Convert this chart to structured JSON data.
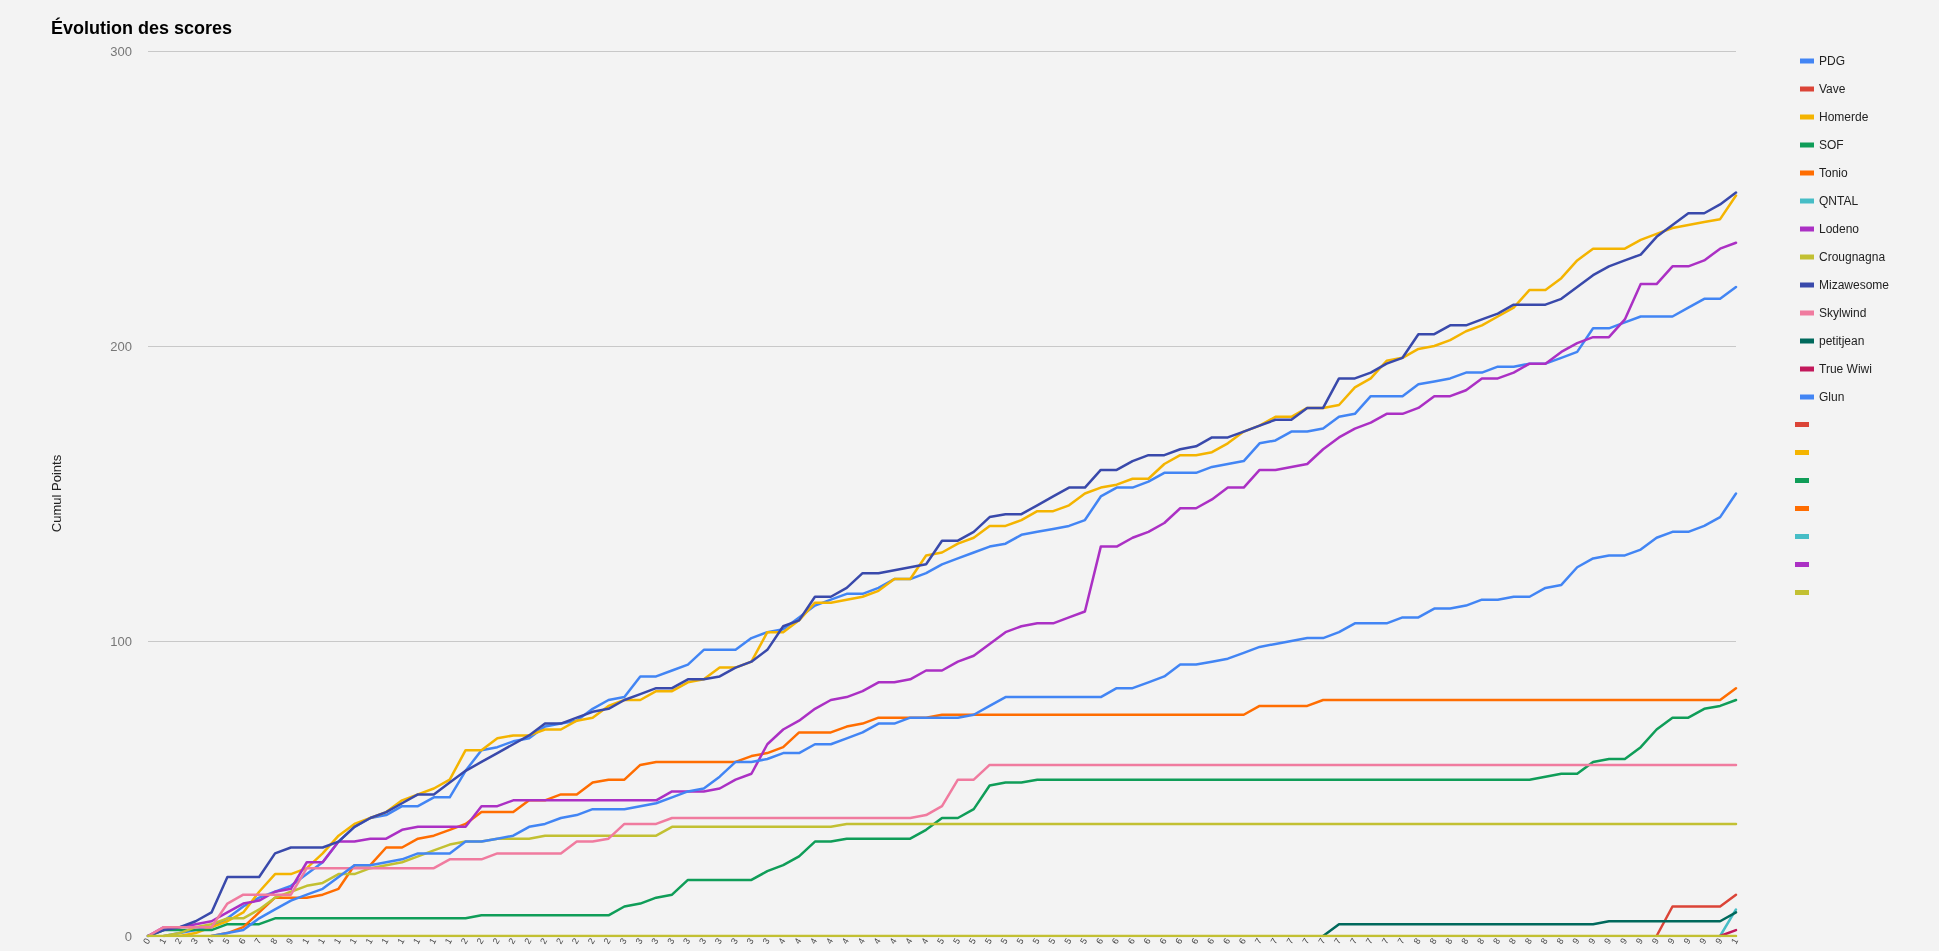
{
  "chart_data": {
    "type": "line",
    "title": "Évolution des scores",
    "ylabel": "Cumul Points",
    "categories": [
      "0",
      "1",
      "2",
      "3",
      "4",
      "5",
      "6",
      "7",
      "8",
      "9",
      "1",
      "1",
      "1",
      "1",
      "1",
      "1",
      "1",
      "1",
      "1",
      "1",
      "2",
      "2",
      "2",
      "2",
      "2",
      "2",
      "2",
      "2",
      "2",
      "2",
      "3",
      "3",
      "3",
      "3",
      "3",
      "3",
      "3",
      "3",
      "3",
      "3",
      "4",
      "4",
      "4",
      "4",
      "4",
      "4",
      "4",
      "4",
      "4",
      "4",
      "5",
      "5",
      "5",
      "5",
      "5",
      "5",
      "5",
      "5",
      "5",
      "5",
      "6",
      "6",
      "6",
      "6",
      "6",
      "6",
      "6",
      "6",
      "6",
      "6",
      "7",
      "7",
      "7",
      "7",
      "7",
      "7",
      "7",
      "7",
      "7",
      "7",
      "8",
      "8",
      "8",
      "8",
      "8",
      "8",
      "8",
      "8",
      "8",
      "8",
      "9",
      "9",
      "9",
      "9",
      "9",
      "9",
      "9",
      "9",
      "9",
      "9",
      "1"
    ],
    "ylim": [
      0,
      300
    ],
    "yticks": [
      0,
      100,
      200,
      300
    ],
    "grid": "y",
    "legend": "top right",
    "marker": "none",
    "series": [
      {
        "name": "PDG",
        "color": "#4285f4",
        "values": [
          null,
          0,
          1,
          2,
          3,
          6,
          10,
          13,
          15,
          17,
          21,
          25,
          32,
          37,
          40,
          41,
          44,
          44,
          47,
          47,
          56,
          63,
          64,
          66,
          67,
          71,
          72,
          73,
          77,
          80,
          81,
          88,
          88,
          90,
          92,
          97,
          97,
          97,
          101,
          103,
          104,
          108,
          112,
          114,
          116,
          116,
          118,
          121,
          121,
          123,
          126,
          128,
          130,
          132,
          133,
          136,
          137,
          138,
          139,
          141,
          149,
          152,
          152,
          154,
          157,
          157,
          157,
          159,
          160,
          161,
          167,
          168,
          171,
          171,
          172,
          176,
          177,
          183,
          183,
          183,
          187,
          188,
          189,
          191,
          191,
          193,
          193,
          194,
          194,
          196,
          198,
          206,
          206,
          208,
          210,
          210,
          210,
          213,
          216,
          216,
          220
        ]
      },
      {
        "name": "Vave",
        "color": "#db4437",
        "values": [
          null,
          null,
          null,
          null,
          null,
          null,
          null,
          null,
          null,
          null,
          null,
          null,
          null,
          null,
          null,
          null,
          null,
          null,
          null,
          null,
          null,
          null,
          null,
          null,
          null,
          null,
          null,
          null,
          null,
          null,
          null,
          null,
          null,
          null,
          null,
          null,
          null,
          null,
          null,
          null,
          null,
          null,
          null,
          null,
          null,
          null,
          null,
          null,
          null,
          null,
          null,
          null,
          null,
          null,
          null,
          null,
          null,
          null,
          null,
          null,
          null,
          null,
          null,
          null,
          null,
          null,
          null,
          null,
          null,
          null,
          null,
          null,
          null,
          null,
          null,
          null,
          null,
          null,
          null,
          null,
          null,
          null,
          null,
          null,
          null,
          null,
          null,
          null,
          null,
          null,
          null,
          null,
          null,
          null,
          null,
          0,
          10,
          10,
          10,
          10,
          14
        ]
      },
      {
        "name": "Homerde",
        "color": "#f4b400",
        "values": [
          null,
          null,
          0,
          1,
          3,
          5,
          8,
          15,
          21,
          21,
          23,
          28,
          34,
          38,
          40,
          42,
          46,
          48,
          50,
          53,
          63,
          63,
          67,
          68,
          68,
          70,
          70,
          73,
          74,
          78,
          80,
          80,
          83,
          83,
          86,
          87,
          91,
          91,
          93,
          103,
          103,
          107,
          113,
          113,
          114,
          115,
          117,
          121,
          121,
          129,
          130,
          133,
          135,
          139,
          139,
          141,
          144,
          144,
          146,
          150,
          152,
          153,
          155,
          155,
          160,
          163,
          163,
          164,
          167,
          171,
          173,
          176,
          176,
          179,
          179,
          180,
          186,
          189,
          195,
          196,
          199,
          200,
          202,
          205,
          207,
          210,
          213,
          219,
          219,
          223,
          229,
          233,
          233,
          233,
          236,
          238,
          240,
          241,
          242,
          243,
          251
        ]
      },
      {
        "name": "SOF",
        "color": "#0f9d58",
        "values": [
          0,
          2,
          2,
          2,
          2,
          4,
          4,
          4,
          6,
          6,
          6,
          6,
          6,
          6,
          6,
          6,
          6,
          6,
          6,
          6,
          6,
          7,
          7,
          7,
          7,
          7,
          7,
          7,
          7,
          7,
          10,
          11,
          13,
          14,
          19,
          19,
          19,
          19,
          19,
          22,
          24,
          27,
          32,
          32,
          33,
          33,
          33,
          33,
          33,
          36,
          40,
          40,
          43,
          51,
          52,
          52,
          53,
          53,
          53,
          53,
          53,
          53,
          53,
          53,
          53,
          53,
          53,
          53,
          53,
          53,
          53,
          53,
          53,
          53,
          53,
          53,
          53,
          53,
          53,
          53,
          53,
          53,
          53,
          53,
          53,
          53,
          53,
          53,
          54,
          55,
          55,
          59,
          60,
          60,
          64,
          70,
          74,
          74,
          77,
          78,
          80
        ]
      },
      {
        "name": "Tonio",
        "color": "#ff6d01",
        "values": [
          null,
          null,
          null,
          null,
          0,
          1,
          3,
          8,
          13,
          13,
          13,
          14,
          16,
          24,
          24,
          30,
          30,
          33,
          34,
          36,
          38,
          42,
          42,
          42,
          46,
          46,
          48,
          48,
          52,
          53,
          53,
          58,
          59,
          59,
          59,
          59,
          59,
          59,
          61,
          62,
          64,
          69,
          69,
          69,
          71,
          72,
          74,
          74,
          74,
          74,
          75,
          75,
          75,
          75,
          75,
          75,
          75,
          75,
          75,
          75,
          75,
          75,
          75,
          75,
          75,
          75,
          75,
          75,
          75,
          75,
          78,
          78,
          78,
          78,
          80,
          80,
          80,
          80,
          80,
          80,
          80,
          80,
          80,
          80,
          80,
          80,
          80,
          80,
          80,
          80,
          80,
          80,
          80,
          80,
          80,
          80,
          80,
          80,
          80,
          80,
          84
        ]
      },
      {
        "name": "QNTAL",
        "color": "#46bdc6",
        "values": [
          null,
          null,
          null,
          null,
          null,
          null,
          null,
          null,
          null,
          null,
          null,
          null,
          null,
          null,
          null,
          null,
          null,
          null,
          null,
          null,
          null,
          null,
          null,
          null,
          null,
          null,
          null,
          null,
          null,
          null,
          null,
          null,
          null,
          null,
          null,
          null,
          null,
          null,
          null,
          null,
          null,
          null,
          null,
          null,
          null,
          null,
          null,
          null,
          null,
          null,
          null,
          null,
          null,
          null,
          null,
          null,
          null,
          null,
          null,
          null,
          null,
          null,
          null,
          null,
          null,
          null,
          null,
          null,
          null,
          null,
          null,
          null,
          null,
          null,
          null,
          null,
          null,
          null,
          null,
          null,
          null,
          null,
          null,
          null,
          null,
          null,
          null,
          null,
          null,
          null,
          null,
          null,
          null,
          null,
          null,
          null,
          null,
          null,
          null,
          0,
          9
        ]
      },
      {
        "name": "Lodeno",
        "color": "#ab30c4",
        "values": [
          0,
          3,
          3,
          4,
          5,
          8,
          11,
          12,
          15,
          16,
          25,
          25,
          32,
          32,
          33,
          33,
          36,
          37,
          37,
          37,
          37,
          44,
          44,
          46,
          46,
          46,
          46,
          46,
          46,
          46,
          46,
          46,
          46,
          49,
          49,
          49,
          50,
          53,
          55,
          65,
          70,
          73,
          77,
          80,
          81,
          83,
          86,
          86,
          87,
          90,
          90,
          93,
          95,
          99,
          103,
          105,
          106,
          106,
          108,
          110,
          132,
          132,
          135,
          137,
          140,
          145,
          145,
          148,
          152,
          152,
          158,
          158,
          159,
          160,
          165,
          169,
          172,
          174,
          177,
          177,
          179,
          183,
          183,
          185,
          189,
          189,
          191,
          194,
          194,
          198,
          201,
          203,
          203,
          209,
          221,
          221,
          227,
          227,
          229,
          233,
          235
        ]
      },
      {
        "name": "Crougnagna",
        "color": "#c2c032",
        "values": [
          null,
          0,
          1,
          3,
          4,
          6,
          6,
          9,
          13,
          15,
          17,
          18,
          21,
          21,
          23,
          24,
          25,
          27,
          29,
          31,
          32,
          32,
          33,
          33,
          33,
          34,
          34,
          34,
          34,
          34,
          34,
          34,
          34,
          37,
          37,
          37,
          37,
          37,
          37,
          37,
          37,
          37,
          37,
          37,
          38,
          38,
          38,
          38,
          38,
          38,
          38,
          38,
          38,
          38,
          38,
          38,
          38,
          38,
          38,
          38,
          38,
          38,
          38,
          38,
          38,
          38,
          38,
          38,
          38,
          38,
          38,
          38,
          38,
          38,
          38,
          38,
          38,
          38,
          38,
          38,
          38,
          38,
          38,
          38,
          38,
          38,
          38,
          38,
          38,
          38,
          38,
          38,
          38,
          38,
          38,
          38,
          38,
          38,
          38,
          38,
          38
        ]
      },
      {
        "name": "Mizawesome",
        "color": "#3949ab",
        "values": [
          0,
          2,
          3,
          5,
          8,
          20,
          20,
          20,
          28,
          30,
          30,
          30,
          32,
          37,
          40,
          42,
          45,
          48,
          48,
          52,
          56,
          59,
          62,
          65,
          68,
          72,
          72,
          74,
          76,
          77,
          80,
          82,
          84,
          84,
          87,
          87,
          88,
          91,
          93,
          97,
          105,
          107,
          115,
          115,
          118,
          123,
          123,
          124,
          125,
          126,
          134,
          134,
          137,
          142,
          143,
          143,
          146,
          149,
          152,
          152,
          158,
          158,
          161,
          163,
          163,
          165,
          166,
          169,
          169,
          171,
          173,
          175,
          175,
          179,
          179,
          189,
          189,
          191,
          194,
          196,
          204,
          204,
          207,
          207,
          209,
          211,
          214,
          214,
          214,
          216,
          220,
          224,
          227,
          229,
          231,
          237,
          241,
          245,
          245,
          248,
          252
        ]
      },
      {
        "name": "Skylwind",
        "color": "#f07b9f",
        "values": [
          0,
          3,
          3,
          3,
          3,
          11,
          14,
          14,
          14,
          14,
          23,
          23,
          23,
          23,
          23,
          23,
          23,
          23,
          23,
          26,
          26,
          26,
          28,
          28,
          28,
          28,
          28,
          32,
          32,
          33,
          38,
          38,
          38,
          40,
          40,
          40,
          40,
          40,
          40,
          40,
          40,
          40,
          40,
          40,
          40,
          40,
          40,
          40,
          40,
          41,
          44,
          53,
          53,
          58,
          58,
          58,
          58,
          58,
          58,
          58,
          58,
          58,
          58,
          58,
          58,
          58,
          58,
          58,
          58,
          58,
          58,
          58,
          58,
          58,
          58,
          58,
          58,
          58,
          58,
          58,
          58,
          58,
          58,
          58,
          58,
          58,
          58,
          58,
          58,
          58,
          58,
          58,
          58,
          58,
          58,
          58,
          58,
          58,
          58,
          58,
          58
        ]
      },
      {
        "name": "petitjean",
        "color": "#00695c",
        "values": [
          null,
          null,
          null,
          null,
          null,
          null,
          null,
          null,
          null,
          null,
          null,
          null,
          null,
          null,
          null,
          null,
          null,
          null,
          null,
          null,
          null,
          null,
          null,
          null,
          null,
          null,
          null,
          null,
          null,
          null,
          null,
          null,
          null,
          null,
          null,
          null,
          null,
          null,
          null,
          null,
          null,
          null,
          null,
          null,
          null,
          null,
          null,
          null,
          null,
          null,
          null,
          null,
          null,
          null,
          null,
          null,
          null,
          null,
          null,
          null,
          null,
          null,
          null,
          null,
          null,
          null,
          null,
          null,
          null,
          null,
          null,
          null,
          null,
          null,
          0,
          4,
          4,
          4,
          4,
          4,
          4,
          4,
          4,
          4,
          4,
          4,
          4,
          4,
          4,
          4,
          4,
          4,
          5,
          5,
          5,
          5,
          5,
          5,
          5,
          5,
          8
        ]
      },
      {
        "name": "True Wiwi",
        "color": "#c2185b",
        "values": [
          null,
          null,
          null,
          null,
          null,
          null,
          null,
          null,
          null,
          null,
          null,
          null,
          null,
          null,
          null,
          null,
          null,
          null,
          null,
          null,
          null,
          null,
          null,
          null,
          null,
          null,
          null,
          null,
          null,
          null,
          null,
          null,
          null,
          null,
          null,
          null,
          null,
          null,
          null,
          null,
          null,
          null,
          null,
          null,
          null,
          null,
          null,
          null,
          null,
          null,
          null,
          null,
          null,
          null,
          null,
          null,
          null,
          null,
          null,
          null,
          null,
          null,
          null,
          null,
          null,
          null,
          null,
          null,
          null,
          null,
          null,
          null,
          null,
          null,
          null,
          null,
          null,
          null,
          null,
          null,
          null,
          null,
          null,
          null,
          null,
          null,
          null,
          null,
          null,
          null,
          null,
          null,
          null,
          null,
          null,
          null,
          null,
          null,
          null,
          0,
          2
        ]
      },
      {
        "name": "Glun",
        "color": "#4285f4",
        "values": [
          null,
          null,
          null,
          null,
          0,
          1,
          2,
          6,
          9,
          12,
          14,
          16,
          20,
          24,
          24,
          25,
          26,
          28,
          28,
          28,
          32,
          32,
          33,
          34,
          37,
          38,
          40,
          41,
          43,
          43,
          43,
          44,
          45,
          47,
          49,
          50,
          54,
          59,
          59,
          60,
          62,
          62,
          65,
          65,
          67,
          69,
          72,
          72,
          74,
          74,
          74,
          74,
          75,
          78,
          81,
          81,
          81,
          81,
          81,
          81,
          81,
          84,
          84,
          86,
          88,
          92,
          92,
          93,
          94,
          96,
          98,
          99,
          100,
          101,
          101,
          103,
          106,
          106,
          106,
          108,
          108,
          111,
          111,
          112,
          114,
          114,
          115,
          115,
          118,
          119,
          125,
          128,
          129,
          129,
          131,
          135,
          137,
          137,
          139,
          142,
          150
        ]
      },
      {
        "color": "#db4437",
        "values": [
          null,
          null,
          null,
          null,
          null,
          null,
          null,
          null,
          null,
          null,
          null,
          null,
          null,
          null,
          null,
          null,
          null,
          null,
          null,
          null,
          null,
          null,
          null,
          null,
          null,
          null,
          null,
          null,
          null,
          null,
          null,
          null,
          null,
          null,
          null,
          null,
          null,
          null,
          null,
          null,
          null,
          null,
          null,
          null,
          null,
          null,
          null,
          null,
          null,
          null,
          null,
          null,
          null,
          null,
          null,
          null,
          null,
          null,
          null,
          null,
          null,
          null,
          null,
          null,
          null,
          null,
          null,
          null,
          null,
          null,
          null,
          null,
          null,
          null,
          null,
          null,
          null,
          null,
          null,
          null,
          null,
          null,
          null,
          null,
          null,
          null,
          null,
          null,
          null,
          null,
          null,
          null,
          null,
          null,
          null,
          null,
          null,
          null,
          null,
          null,
          null
        ]
      },
      {
        "color": "#f4b400",
        "values": [
          null,
          null,
          null,
          null,
          null,
          null,
          null,
          null,
          null,
          null,
          null,
          null,
          null,
          null,
          null,
          null,
          null,
          null,
          null,
          null,
          null,
          null,
          null,
          null,
          null,
          null,
          null,
          null,
          null,
          null,
          null,
          null,
          null,
          null,
          null,
          null,
          null,
          null,
          null,
          null,
          null,
          null,
          null,
          null,
          null,
          null,
          null,
          null,
          null,
          null,
          null,
          null,
          null,
          null,
          null,
          null,
          null,
          null,
          null,
          null,
          null,
          null,
          null,
          null,
          null,
          null,
          null,
          null,
          null,
          null,
          null,
          null,
          null,
          null,
          null,
          null,
          null,
          null,
          null,
          null,
          null,
          null,
          null,
          null,
          null,
          null,
          null,
          null,
          null,
          null,
          null,
          null,
          null,
          null,
          null,
          null,
          null,
          null,
          null,
          null,
          null
        ]
      },
      {
        "color": "#0f9d58",
        "values": [
          null,
          null,
          null,
          null,
          null,
          null,
          null,
          null,
          null,
          null,
          null,
          null,
          null,
          null,
          null,
          null,
          null,
          null,
          null,
          null,
          null,
          null,
          null,
          null,
          null,
          null,
          null,
          null,
          null,
          null,
          null,
          null,
          null,
          null,
          null,
          null,
          null,
          null,
          null,
          null,
          null,
          null,
          null,
          null,
          null,
          null,
          null,
          null,
          null,
          null,
          null,
          null,
          null,
          null,
          null,
          null,
          null,
          null,
          null,
          null,
          null,
          null,
          null,
          null,
          null,
          null,
          null,
          null,
          null,
          null,
          null,
          null,
          null,
          null,
          null,
          null,
          null,
          null,
          null,
          null,
          null,
          null,
          null,
          null,
          null,
          null,
          null,
          null,
          null,
          null,
          null,
          null,
          null,
          null,
          null,
          null,
          null,
          null,
          null,
          null,
          null
        ]
      },
      {
        "color": "#ff6d01",
        "values": [
          null,
          null,
          null,
          null,
          null,
          null,
          null,
          null,
          null,
          null,
          null,
          null,
          null,
          null,
          null,
          null,
          null,
          null,
          null,
          null,
          null,
          null,
          null,
          null,
          null,
          null,
          null,
          null,
          null,
          null,
          null,
          null,
          null,
          null,
          null,
          null,
          null,
          null,
          null,
          null,
          null,
          null,
          null,
          null,
          null,
          null,
          null,
          null,
          null,
          null,
          null,
          null,
          null,
          null,
          null,
          null,
          null,
          null,
          null,
          null,
          null,
          null,
          null,
          null,
          null,
          null,
          null,
          null,
          null,
          null,
          null,
          null,
          null,
          null,
          null,
          null,
          null,
          null,
          null,
          null,
          null,
          null,
          null,
          null,
          null,
          null,
          null,
          null,
          null,
          null,
          null,
          null,
          null,
          null,
          null,
          null,
          null,
          null,
          null,
          null,
          null
        ]
      },
      {
        "color": "#46bdc6",
        "values": [
          null,
          null,
          null,
          null,
          null,
          null,
          null,
          null,
          null,
          null,
          null,
          null,
          null,
          null,
          null,
          null,
          null,
          null,
          null,
          null,
          null,
          null,
          null,
          null,
          null,
          null,
          null,
          null,
          null,
          null,
          null,
          null,
          null,
          null,
          null,
          null,
          null,
          null,
          null,
          null,
          null,
          null,
          null,
          null,
          null,
          null,
          null,
          null,
          null,
          null,
          null,
          null,
          null,
          null,
          null,
          null,
          null,
          null,
          null,
          null,
          null,
          null,
          null,
          null,
          null,
          null,
          null,
          null,
          null,
          null,
          null,
          null,
          null,
          null,
          null,
          null,
          null,
          null,
          null,
          null,
          null,
          null,
          null,
          null,
          null,
          null,
          null,
          null,
          null,
          null,
          null,
          null,
          null,
          null,
          null,
          null,
          null,
          null,
          null,
          null,
          null
        ]
      },
      {
        "color": "#ab30c4",
        "values": [
          null,
          null,
          null,
          null,
          null,
          null,
          null,
          null,
          null,
          null,
          null,
          null,
          null,
          null,
          null,
          null,
          null,
          null,
          null,
          null,
          null,
          null,
          null,
          null,
          null,
          null,
          null,
          null,
          null,
          null,
          null,
          null,
          null,
          null,
          null,
          null,
          null,
          null,
          null,
          null,
          null,
          null,
          null,
          null,
          null,
          null,
          null,
          null,
          null,
          null,
          null,
          null,
          null,
          null,
          null,
          null,
          null,
          null,
          null,
          null,
          null,
          null,
          null,
          null,
          null,
          null,
          null,
          null,
          null,
          null,
          null,
          null,
          null,
          null,
          null,
          null,
          null,
          null,
          null,
          null,
          null,
          null,
          null,
          null,
          null,
          null,
          null,
          null,
          null,
          null,
          null,
          null,
          null,
          null,
          null,
          null,
          null,
          null,
          null,
          null,
          null
        ]
      },
      {
        "color": "#c2c032",
        "values": [
          0,
          0,
          0,
          0,
          0,
          0,
          0,
          0,
          0,
          0,
          0,
          0,
          0,
          0,
          0,
          0,
          0,
          0,
          0,
          0,
          0,
          0,
          0,
          0,
          0,
          0,
          0,
          0,
          0,
          0,
          0,
          0,
          0,
          0,
          0,
          0,
          0,
          0,
          0,
          0,
          0,
          0,
          0,
          0,
          0,
          0,
          0,
          0,
          0,
          0,
          0,
          0,
          0,
          0,
          0,
          0,
          0,
          0,
          0,
          0,
          0,
          0,
          0,
          0,
          0,
          0,
          0,
          0,
          0,
          0,
          0,
          0,
          0,
          0,
          0,
          0,
          0,
          0,
          0,
          0,
          0,
          0,
          0,
          0,
          0,
          0,
          0,
          0,
          0,
          0,
          0,
          0,
          0,
          0,
          0,
          0,
          0,
          0,
          0,
          0,
          0
        ]
      }
    ]
  }
}
